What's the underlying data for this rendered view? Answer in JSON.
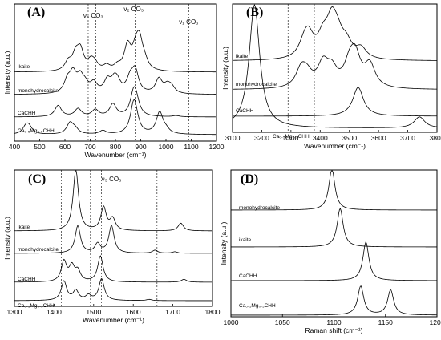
{
  "chart_data": [
    {
      "panel": "(A)",
      "type": "line",
      "xlabel": "Wavenumber (cm⁻¹)",
      "ylabel": "Intensity (a.u.)",
      "xlim": [
        400,
        1200
      ],
      "xticks": [
        "400",
        "500",
        "600",
        "700",
        "800",
        "900",
        "1000",
        "1100",
        "1200"
      ],
      "annotations": [
        {
          "text": "ν₄ CO₃",
          "x": 712
        },
        {
          "text": "ν₂ CO₃",
          "x": 872
        },
        {
          "text": "ν₁ CO₃",
          "x": 1090
        }
      ],
      "vlines": [
        692,
        722,
        862,
        878,
        1090
      ],
      "series": [
        {
          "name": "ikaite",
          "peaks": [
            [
              613,
              0.35
            ],
            [
              642,
              0.6
            ],
            [
              661,
              0.8
            ],
            [
              703,
              0.35
            ],
            [
              718,
              0.25
            ],
            [
              765,
              0.2
            ],
            [
              808,
              0.18
            ],
            [
              848,
              1.0
            ],
            [
              880,
              0.7
            ],
            [
              895,
              1.1
            ],
            [
              915,
              0.3
            ]
          ]
        },
        {
          "name": "monohydrocalcite",
          "peaks": [
            [
              610,
              0.5
            ],
            [
              632,
              0.75
            ],
            [
              660,
              0.6
            ],
            [
              680,
              0.3
            ],
            [
              714,
              0.4
            ],
            [
              768,
              0.5
            ],
            [
              795,
              0.45
            ],
            [
              808,
              0.35
            ],
            [
              858,
              0.55
            ],
            [
              878,
              0.9
            ],
            [
              972,
              0.6
            ],
            [
              1005,
              0.3
            ],
            [
              1022,
              0.25
            ]
          ]
        },
        {
          "name": "CaCHH",
          "peaks": [
            [
              573,
              0.5
            ],
            [
              652,
              0.35
            ],
            [
              720,
              0.3
            ],
            [
              790,
              0.55
            ],
            [
              872,
              0.95
            ],
            [
              882,
              0.5
            ],
            [
              1040,
              0.05
            ]
          ]
        },
        {
          "name": "Ca₀.₅Mg₀.₅CHH",
          "peaks": [
            [
              446,
              0.3
            ],
            [
              458,
              0.25
            ],
            [
              620,
              0.45
            ],
            [
              640,
              0.2
            ],
            [
              750,
              0.15
            ],
            [
              872,
              1.1
            ],
            [
              880,
              0.4
            ],
            [
              975,
              0.9
            ],
            [
              1000,
              0.15
            ]
          ]
        }
      ]
    },
    {
      "panel": "(B)",
      "type": "line",
      "xlabel": "Wavenumber (cm⁻¹)",
      "ylabel": "Intensity (a.u.)",
      "xlim": [
        3100,
        3800
      ],
      "xticks": [
        "3100",
        "3200",
        "3300",
        "3400",
        "3500",
        "3600",
        "3700",
        "3800"
      ],
      "vlines": [
        3290,
        3380
      ],
      "series": [
        {
          "name": "ikaite",
          "peaks": [
            [
              3345,
              0.35
            ],
            [
              3360,
              0.6
            ],
            [
              3410,
              0.55
            ],
            [
              3440,
              1.0
            ],
            [
              3460,
              0.5
            ],
            [
              3490,
              0.4
            ],
            [
              3540,
              0.3
            ]
          ]
        },
        {
          "name": "monohydrocalcite",
          "peaks": [
            [
              3335,
              0.55
            ],
            [
              3355,
              0.35
            ],
            [
              3410,
              0.7
            ],
            [
              3440,
              0.5
            ],
            [
              3500,
              0.6
            ],
            [
              3520,
              0.9
            ],
            [
              3570,
              0.7
            ]
          ]
        },
        {
          "name": "CaCHH",
          "peaks": [
            [
              3530,
              1.0
            ]
          ]
        },
        {
          "name": "Ca₀.₅Mg₀.₅CHH",
          "peaks": [
            [
              3175,
              2.2
            ],
            [
              3740,
              0.2
            ]
          ]
        }
      ]
    },
    {
      "panel": "(C)",
      "type": "line",
      "xlabel": "Wavenumber (cm⁻¹)",
      "ylabel": "Intensity (a.u.)",
      "xlim": [
        1300,
        1800
      ],
      "xticks": [
        "1300",
        "1400",
        "1500",
        "1600",
        "1700",
        "1800"
      ],
      "annotations": [
        {
          "text": "ν₃ CO₃",
          "x": 1545
        }
      ],
      "vlines": [
        1392,
        1418,
        1492,
        1520,
        1660
      ],
      "series": [
        {
          "name": "ikaite",
          "peaks": [
            [
              1455,
              1.6
            ],
            [
              1525,
              0.6
            ],
            [
              1548,
              0.3
            ],
            [
              1720,
              0.2
            ]
          ]
        },
        {
          "name": "monohydrocalcite",
          "peaks": [
            [
              1460,
              0.9
            ],
            [
              1510,
              0.3
            ],
            [
              1545,
              0.9
            ],
            [
              1655,
              0.1
            ],
            [
              1705,
              0.05
            ]
          ]
        },
        {
          "name": "CaCHH",
          "peaks": [
            [
              1425,
              0.7
            ],
            [
              1445,
              0.5
            ],
            [
              1460,
              0.35
            ],
            [
              1517,
              0.9
            ],
            [
              1728,
              0.1
            ]
          ]
        },
        {
          "name": "Ca₀.₅Mg₀.₅CHH",
          "peaks": [
            [
              1425,
              0.8
            ],
            [
              1455,
              0.4
            ],
            [
              1487,
              0.2
            ],
            [
              1520,
              0.9
            ],
            [
              1640,
              0.05
            ]
          ]
        }
      ]
    },
    {
      "panel": "(D)",
      "type": "line",
      "xlabel": "Raman shift (cm⁻¹)",
      "ylabel": "Intensity (a.u.)",
      "xlim": [
        1000,
        1200
      ],
      "xticks": [
        "1000",
        "1050",
        "1100",
        "1150",
        "1200"
      ],
      "series": [
        {
          "name": "monohydrocalcite",
          "peaks": [
            [
              1098,
              1.0
            ]
          ]
        },
        {
          "name": "ikaite",
          "peaks": [
            [
              1106,
              1.0
            ]
          ]
        },
        {
          "name": "CaCHH",
          "peaks": [
            [
              1131,
              1.0
            ]
          ]
        },
        {
          "name": "Ca₀.₅Mg₀.₅CHH",
          "peaks": [
            [
              1126,
              0.75
            ],
            [
              1155,
              0.65
            ]
          ]
        }
      ]
    }
  ]
}
